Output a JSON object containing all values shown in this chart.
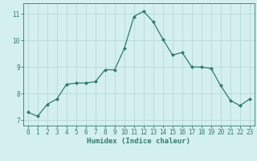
{
  "x": [
    0,
    1,
    2,
    3,
    4,
    5,
    6,
    7,
    8,
    9,
    10,
    11,
    12,
    13,
    14,
    15,
    16,
    17,
    18,
    19,
    20,
    21,
    22,
    23
  ],
  "y": [
    7.3,
    7.15,
    7.6,
    7.8,
    8.35,
    8.4,
    8.4,
    8.45,
    8.9,
    8.9,
    9.7,
    10.9,
    11.1,
    10.7,
    10.05,
    9.45,
    9.55,
    9.0,
    9.0,
    8.95,
    8.3,
    7.75,
    7.55,
    7.8
  ],
  "line_color": "#2e7d6e",
  "marker_color": "#2e7d6e",
  "bg_color": "#d4efef",
  "grid_color": "#b8d8d8",
  "axis_color": "#2e7d6e",
  "xlabel": "Humidex (Indice chaleur)",
  "xlim": [
    -0.5,
    23.5
  ],
  "ylim": [
    6.8,
    11.4
  ],
  "yticks": [
    7,
    8,
    9,
    10,
    11
  ],
  "xticks": [
    0,
    1,
    2,
    3,
    4,
    5,
    6,
    7,
    8,
    9,
    10,
    11,
    12,
    13,
    14,
    15,
    16,
    17,
    18,
    19,
    20,
    21,
    22,
    23
  ],
  "xlabel_fontsize": 6.5,
  "tick_fontsize": 5.5
}
